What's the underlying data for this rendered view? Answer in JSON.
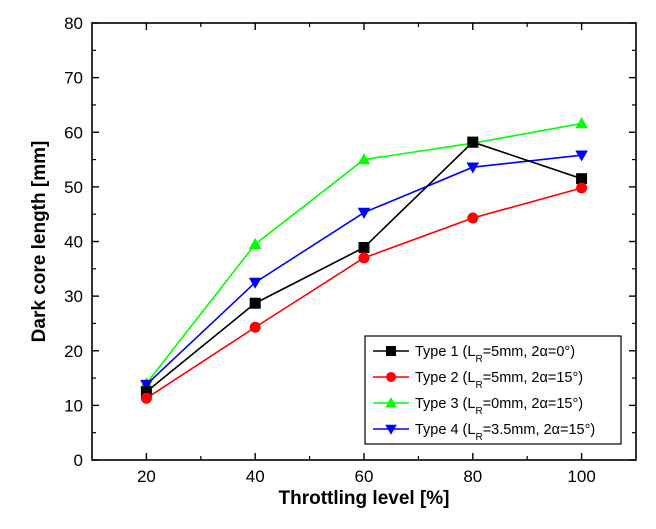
{
  "chart_data": {
    "type": "line",
    "xlabel": "Throttling level [%]",
    "ylabel": "Dark core length [mm]",
    "xlim": [
      10,
      110
    ],
    "ylim": [
      0,
      80
    ],
    "x_ticks": [
      20,
      40,
      60,
      80,
      100
    ],
    "y_ticks": [
      0,
      10,
      20,
      30,
      40,
      50,
      60,
      70,
      80
    ],
    "x_tick_labels": [
      "20",
      "40",
      "60",
      "80",
      "100"
    ],
    "y_tick_labels": [
      "0",
      "10",
      "20",
      "30",
      "40",
      "50",
      "60",
      "70",
      "80"
    ],
    "grid": false,
    "legend_position": "bottom-right",
    "x": [
      20,
      40,
      60,
      80,
      100
    ],
    "series": [
      {
        "name": "Type 1 (L_R=5mm, 2α=0°)",
        "legend": {
          "prefix": "Type 1 (L",
          "sub": "R",
          "suffix": "=5mm, 2α=0°)"
        },
        "color": "#000000",
        "marker": "square",
        "values": [
          12.5,
          28.7,
          38.9,
          58.2,
          51.5
        ]
      },
      {
        "name": "Type 2 (L_R=5mm, 2α=15°)",
        "legend": {
          "prefix": "Type 2 (L",
          "sub": "R",
          "suffix": "=5mm, 2α=15°)"
        },
        "color": "#ff0000",
        "marker": "circle",
        "values": [
          11.3,
          24.3,
          37.0,
          44.3,
          49.8
        ]
      },
      {
        "name": "Type 3 (L_R=0mm, 2α=15°)",
        "legend": {
          "prefix": "Type 3 (L",
          "sub": "R",
          "suffix": "=0mm, 2α=15°)"
        },
        "color": "#00ff00",
        "marker": "triangle-up",
        "values": [
          14.0,
          39.5,
          55.0,
          58.0,
          61.6
        ]
      },
      {
        "name": "Type 4 (L_R=3.5mm, 2α=15°)",
        "legend": {
          "prefix": "Type 4 (L",
          "sub": "R",
          "suffix": "=3.5mm, 2α=15°)"
        },
        "color": "#0000ff",
        "marker": "triangle-down",
        "values": [
          13.8,
          32.5,
          45.3,
          53.6,
          55.8
        ]
      }
    ]
  }
}
